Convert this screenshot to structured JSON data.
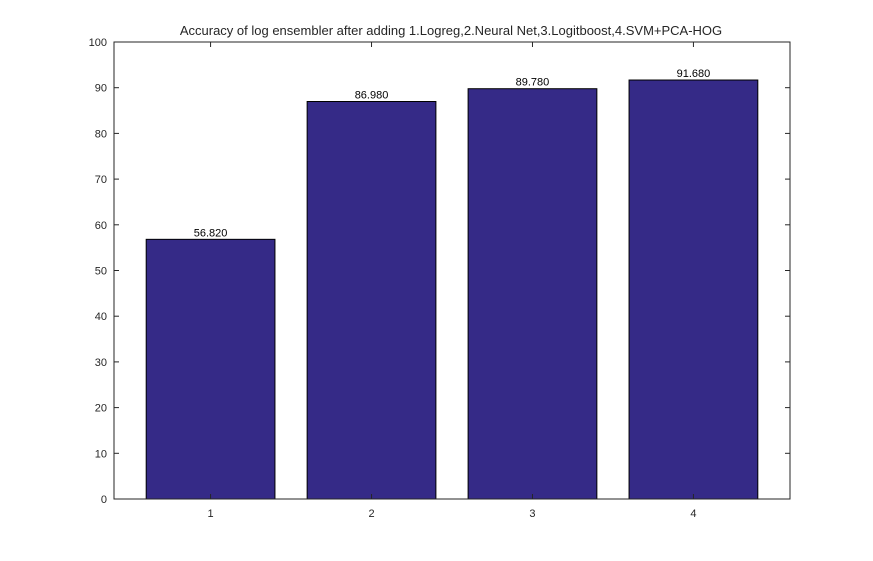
{
  "chart_data": {
    "type": "bar",
    "title": "Accuracy of log ensembler after adding 1.Logreg,2.Neural Net,3.Logitboost,4.SVM+PCA-HOG",
    "xlabel": "",
    "ylabel": "",
    "categories": [
      "1",
      "2",
      "3",
      "4"
    ],
    "values": [
      56.82,
      86.98,
      89.78,
      91.68
    ],
    "data_labels": [
      "56.820",
      "86.980",
      "89.780",
      "91.680"
    ],
    "ylim": [
      0,
      100
    ],
    "yticks": [
      0,
      10,
      20,
      30,
      40,
      50,
      60,
      70,
      80,
      90,
      100
    ],
    "ytick_labels": [
      "0",
      "10",
      "20",
      "30",
      "40",
      "50",
      "60",
      "70",
      "80",
      "90",
      "100"
    ],
    "grid": false,
    "bar_color": "#352A87",
    "bar_edge_color": "#000000"
  }
}
